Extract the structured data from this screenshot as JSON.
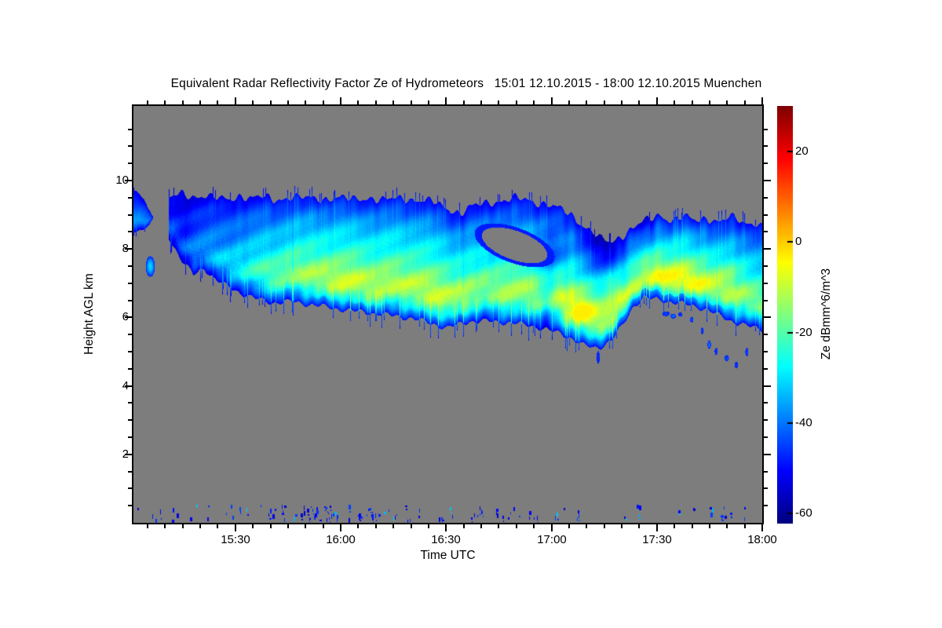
{
  "figure": {
    "full_title": "Equivalent Radar Reflectivity Factor Ze of Hydrometeors   15:01 12.10.2015 - 18:00 12.10.2015 Muenchen"
  },
  "chart_data": {
    "type": "heatmap",
    "title": "Equivalent Radar Reflectivity Factor Ze of Hydrometeors",
    "period": "15:01 12.10.2015 - 18:00 12.10.2015",
    "site": "Muenchen",
    "xlabel": "Time UTC",
    "ylabel": "Height AGL km",
    "zlabel": "Ze dBmm^6/m^3",
    "legend_position": "right-colorbar",
    "grid": false,
    "x_axis": {
      "unit": "minutes after 15:00 UTC",
      "start": 1,
      "end": 180,
      "minor_step": 5,
      "major_ticks": [
        {
          "t": 30,
          "label": "15:30"
        },
        {
          "t": 60,
          "label": "16:00"
        },
        {
          "t": 90,
          "label": "16:30"
        },
        {
          "t": 120,
          "label": "17:00"
        },
        {
          "t": 150,
          "label": "17:30"
        },
        {
          "t": 180,
          "label": "18:00"
        }
      ]
    },
    "y_axis": {
      "unit": "km",
      "min": 0,
      "max": 12.18,
      "minor_step": 0.5,
      "major_ticks": [
        {
          "km": 2,
          "label": "2"
        },
        {
          "km": 4,
          "label": "4"
        },
        {
          "km": 6,
          "label": "6"
        },
        {
          "km": 8,
          "label": "8"
        },
        {
          "km": 10,
          "label": "10"
        }
      ]
    },
    "z_axis": {
      "unit": "dBmm^6/m^3",
      "min": -62,
      "max": 30,
      "colormap": "jet",
      "ticks": [
        {
          "v": 20,
          "label": "20"
        },
        {
          "v": 0,
          "label": "0"
        },
        {
          "v": -20,
          "label": "-20"
        },
        {
          "v": -40,
          "label": "-40"
        },
        {
          "v": -60,
          "label": "-60"
        }
      ]
    },
    "colors": {
      "no_echo_gray": "#7d7d7d",
      "frame": "#000000",
      "page": "#ffffff"
    },
    "cloud_band": {
      "description": "stratiform ice cloud band sloping from ~9.5 km cloud top / 8.3 km base at 15:11 down to base ~5.1 km near 17:13, continuing to 18:00 with top ~8.7 km; core reflectivity -14 to -7 dB (green-yellow), edges -40 to -55 dB (blue)",
      "profile_t_top_base_core": [
        [
          11,
          9.5,
          8.35,
          -40
        ],
        [
          14.5,
          9.62,
          7.7,
          -37
        ],
        [
          18,
          9.54,
          7.25,
          -35
        ],
        [
          21,
          9.58,
          7.45,
          -34
        ],
        [
          24.5,
          9.5,
          7.1,
          -31
        ],
        [
          28,
          9.44,
          6.9,
          -29
        ],
        [
          31,
          9.58,
          6.74,
          -27
        ],
        [
          34.5,
          9.5,
          6.6,
          -24
        ],
        [
          38,
          9.54,
          6.5,
          -21
        ],
        [
          41,
          9.44,
          6.44,
          -19
        ],
        [
          46,
          9.54,
          6.48,
          -17
        ],
        [
          50,
          9.5,
          6.4,
          -15
        ],
        [
          55,
          9.47,
          6.33,
          -14
        ],
        [
          59,
          9.52,
          6.26,
          -13
        ],
        [
          64,
          9.45,
          6.19,
          -12
        ],
        [
          68,
          9.52,
          6.15,
          -13
        ],
        [
          72,
          9.44,
          6.1,
          -12
        ],
        [
          77,
          9.5,
          6.03,
          -11
        ],
        [
          81,
          9.45,
          5.96,
          -10
        ],
        [
          86,
          9.4,
          5.83,
          -9
        ],
        [
          90,
          9.2,
          5.7,
          -10
        ],
        [
          94,
          9.06,
          5.83,
          -11
        ],
        [
          97,
          9.25,
          5.9,
          -12
        ],
        [
          102,
          9.36,
          5.9,
          -13
        ],
        [
          106,
          9.43,
          5.87,
          -12
        ],
        [
          110,
          9.5,
          5.83,
          -12
        ],
        [
          115,
          9.38,
          5.76,
          -11
        ],
        [
          119,
          9.33,
          5.64,
          -10
        ],
        [
          123,
          9.15,
          5.52,
          -9
        ],
        [
          126,
          8.95,
          5.38,
          -7
        ],
        [
          129,
          8.7,
          5.2,
          -8
        ],
        [
          132,
          8.5,
          5.12,
          -10
        ],
        [
          134,
          8.3,
          5.15,
          -11
        ],
        [
          137,
          8.18,
          5.35,
          -10
        ],
        [
          140,
          8.4,
          5.75,
          -11
        ],
        [
          143,
          8.65,
          6.3,
          -12
        ],
        [
          146,
          8.82,
          6.6,
          -12
        ],
        [
          149,
          8.9,
          6.55,
          -11
        ],
        [
          152,
          8.95,
          6.5,
          -10
        ],
        [
          155,
          8.9,
          6.45,
          -9
        ],
        [
          158,
          8.92,
          6.4,
          -9
        ],
        [
          161,
          8.88,
          6.32,
          -10
        ],
        [
          164,
          8.85,
          6.25,
          -10
        ],
        [
          167,
          8.88,
          6.1,
          -11
        ],
        [
          170,
          8.9,
          5.95,
          -11
        ],
        [
          173,
          8.85,
          5.85,
          -12
        ],
        [
          176,
          8.78,
          5.75,
          -13
        ],
        [
          180,
          8.68,
          5.65,
          -14
        ]
      ],
      "echo_free_hole": {
        "t": 109.4,
        "h": 8.12,
        "rt": 9.8,
        "rh": 0.42,
        "tilt_deg": 20
      },
      "bright_cells_t_h_st_sh_amp": [
        [
          60,
          6.6,
          4,
          0.4,
          4
        ],
        [
          70,
          6.4,
          3,
          0.35,
          4
        ],
        [
          86,
          6.15,
          3,
          0.35,
          6
        ],
        [
          95,
          6.35,
          2,
          0.3,
          5
        ],
        [
          108,
          6.3,
          3,
          0.35,
          4
        ],
        [
          128.5,
          6.2,
          2.2,
          0.28,
          9
        ],
        [
          137,
          7.0,
          1.6,
          0.25,
          7
        ],
        [
          152,
          7.35,
          3,
          0.3,
          5
        ],
        [
          160,
          7.15,
          4,
          0.35,
          5
        ],
        [
          170,
          7.3,
          3,
          0.3,
          4
        ]
      ],
      "dark_cells_t_h_st_sh_amp": [
        [
          118.5,
          6.6,
          1.7,
          1.0,
          -10
        ],
        [
          121,
          7.9,
          2.5,
          0.45,
          -12
        ],
        [
          134,
          7.85,
          5,
          0.55,
          -13
        ],
        [
          15,
          8.6,
          2,
          0.6,
          -5
        ],
        [
          147,
          8.6,
          2,
          0.4,
          -8
        ]
      ]
    },
    "left_edge_patch": {
      "profile_t_top_base": [
        [
          1,
          9.68,
          8.5
        ],
        [
          2.5,
          9.62,
          8.55
        ],
        [
          4,
          9.45,
          8.62
        ],
        [
          5.5,
          9.15,
          8.72
        ],
        [
          6.4,
          8.95,
          8.86
        ]
      ],
      "core": -36
    },
    "detached_blob": {
      "t": 5.7,
      "h": 7.5,
      "rt": 1.3,
      "rh": 0.3,
      "v": -30
    },
    "fragments_t_h_rt_rh_v": [
      [
        133.2,
        4.85,
        0.4,
        0.18,
        -46
      ],
      [
        152.5,
        6.12,
        1.1,
        0.07,
        -44
      ],
      [
        154.6,
        6.05,
        0.8,
        0.07,
        -40
      ],
      [
        156.6,
        6.1,
        0.6,
        0.06,
        -46
      ],
      [
        159.8,
        5.95,
        0.5,
        0.08,
        -43
      ],
      [
        162.8,
        5.62,
        0.45,
        0.1,
        -45
      ],
      [
        164.8,
        5.22,
        0.5,
        0.12,
        -39
      ],
      [
        166.8,
        5.02,
        0.45,
        0.1,
        -45
      ],
      [
        169.8,
        4.82,
        0.6,
        0.09,
        -43
      ],
      [
        172.5,
        4.62,
        0.5,
        0.1,
        -46
      ],
      [
        175.5,
        5.0,
        0.4,
        0.12,
        -44
      ]
    ],
    "ground_clutter": {
      "description": "scattered weak blue echoes 0.1-0.5 km AGL along whole period, densest 15:50-16:00",
      "seed": 20151012,
      "height_min_km": 0.08,
      "height_max_km": 0.52,
      "clusters_t0_t1_count": [
        [
          1.5,
          3,
          1
        ],
        [
          6,
          9,
          4
        ],
        [
          12,
          14,
          3
        ],
        [
          17,
          19,
          3
        ],
        [
          21,
          23,
          2
        ],
        [
          27,
          32,
          5
        ],
        [
          33,
          35,
          2
        ],
        [
          37,
          43,
          6
        ],
        [
          43,
          49,
          7
        ],
        [
          49,
          61,
          24
        ],
        [
          61,
          63,
          2
        ],
        [
          64,
          68,
          5
        ],
        [
          68,
          71,
          7
        ],
        [
          72,
          76,
          5
        ],
        [
          78,
          80,
          3
        ],
        [
          81,
          83,
          2
        ],
        [
          86,
          89,
          4
        ],
        [
          91,
          93,
          2
        ],
        [
          96,
          101,
          7
        ],
        [
          104,
          111,
          8
        ],
        [
          113,
          116,
          4
        ],
        [
          121,
          124,
          5
        ],
        [
          127,
          129,
          3
        ],
        [
          140,
          142,
          2
        ],
        [
          144,
          147,
          4
        ],
        [
          156,
          158,
          2
        ],
        [
          160,
          162,
          2
        ],
        [
          164,
          166,
          3
        ],
        [
          168,
          171,
          5
        ],
        [
          173,
          175,
          2
        ]
      ]
    }
  }
}
